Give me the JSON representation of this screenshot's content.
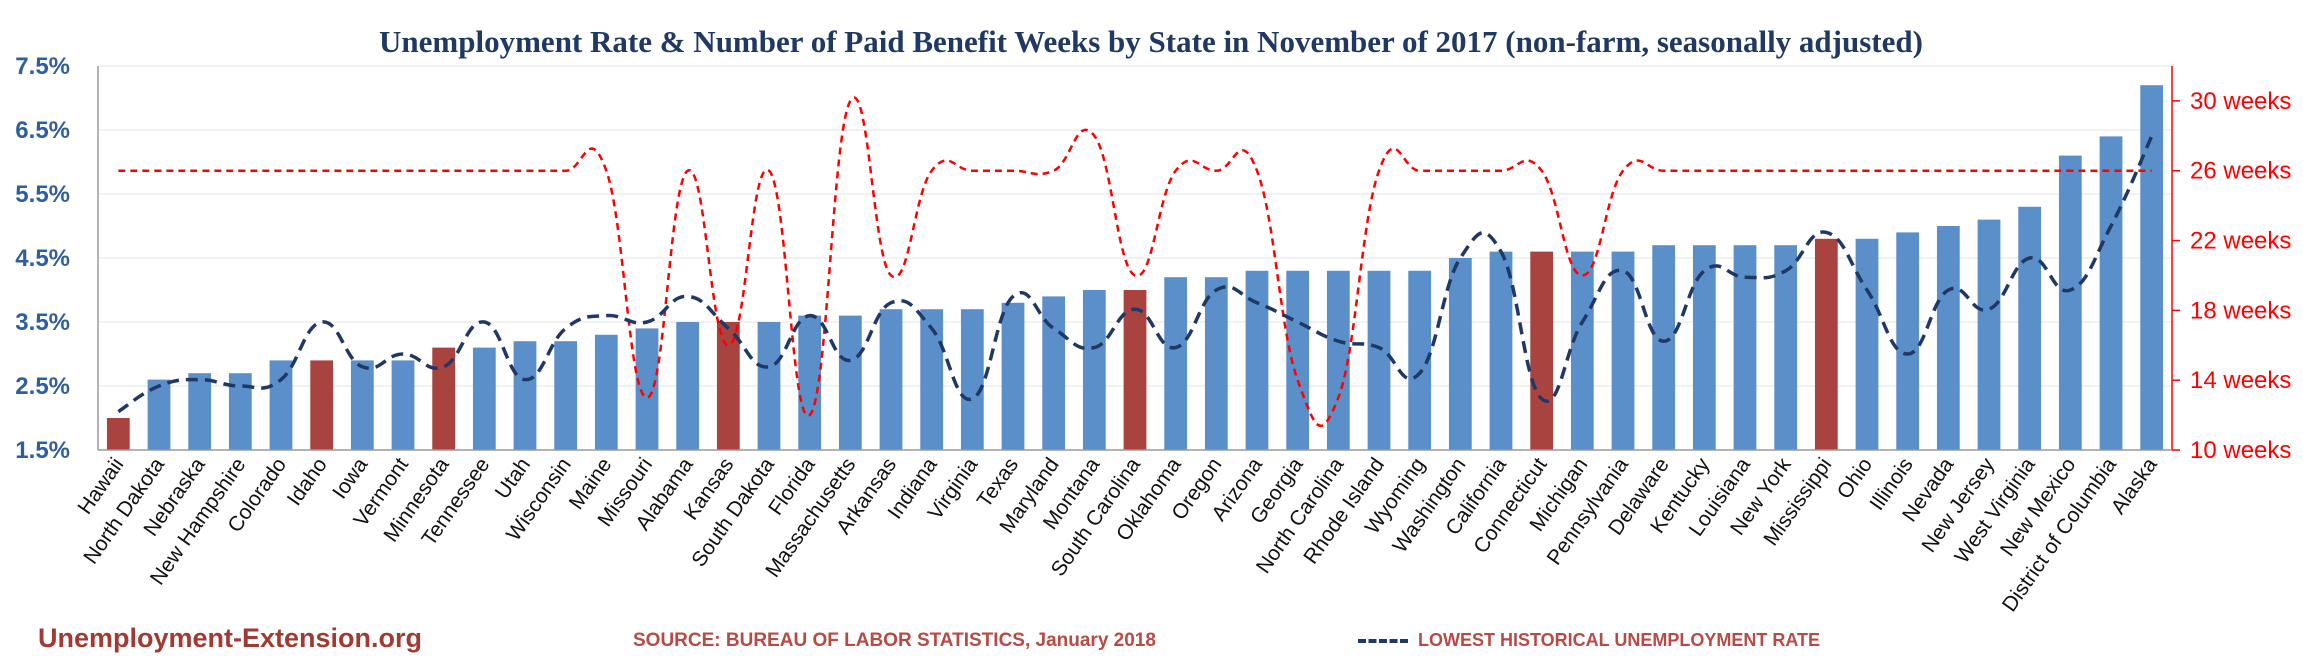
{
  "chart_data": {
    "type": "bar",
    "title": "Unemployment Rate & Number of Paid Benefit Weeks by State in November of 2017 (non-farm, seasonally adjusted)",
    "categories": [
      "Hawaii",
      "North Dakota",
      "Nebraska",
      "New Hampshire",
      "Colorado",
      "Idaho",
      "Iowa",
      "Vermont",
      "Minnesota",
      "Tennessee",
      "Utah",
      "Wisconsin",
      "Maine",
      "Missouri",
      "Alabama",
      "Kansas",
      "South Dakota",
      "Florida",
      "Massachusetts",
      "Arkansas",
      "Indiana",
      "Virginia",
      "Texas",
      "Maryland",
      "Montana",
      "South Carolina",
      "Oklahoma",
      "Oregon",
      "Arizona",
      "Georgia",
      "North Carolina",
      "Rhode Island",
      "Wyoming",
      "Washington",
      "California",
      "Connecticut",
      "Michigan",
      "Pennsylvania",
      "Delaware",
      "Kentucky",
      "Louisiana",
      "New York",
      "Mississippi",
      "Ohio",
      "Illinois",
      "Nevada",
      "New Jersey",
      "West Virginia",
      "New Mexico",
      "District of Columbia",
      "Alaska"
    ],
    "series": [
      {
        "name": "",
        "axis": "left",
        "values": [
          2.0,
          2.6,
          2.7,
          2.7,
          2.9,
          2.9,
          2.9,
          2.9,
          3.1,
          3.1,
          3.2,
          3.2,
          3.3,
          3.4,
          3.5,
          3.5,
          3.5,
          3.6,
          3.6,
          3.7,
          3.7,
          3.7,
          3.8,
          3.9,
          4.0,
          4.0,
          4.2,
          4.2,
          4.3,
          4.3,
          4.3,
          4.3,
          4.3,
          4.5,
          4.6,
          4.6,
          4.6,
          4.6,
          4.7,
          4.7,
          4.7,
          4.7,
          4.8,
          4.8,
          4.9,
          5.0,
          5.1,
          5.3,
          6.1,
          6.4,
          7.2
        ],
        "highlighted": [
          "Hawaii",
          "Idaho",
          "Minnesota",
          "Kansas",
          "South Carolina",
          "Connecticut",
          "Mississippi"
        ],
        "color": "#5b8fc9",
        "highlight_color": "#a9433f"
      },
      {
        "name": "LOWEST HISTORICAL UNEMPLOYMENT RATE",
        "axis": "left",
        "values": [
          2.1,
          2.5,
          2.6,
          2.5,
          2.6,
          3.5,
          2.8,
          3.0,
          2.8,
          3.5,
          2.6,
          3.4,
          3.6,
          3.5,
          3.9,
          3.4,
          2.8,
          3.6,
          2.9,
          3.8,
          3.4,
          2.3,
          3.9,
          3.4,
          3.1,
          3.7,
          3.1,
          4.0,
          3.8,
          3.5,
          3.2,
          3.1,
          2.7,
          4.5,
          4.6,
          2.3,
          3.5,
          4.3,
          3.2,
          4.3,
          4.2,
          4.3,
          4.9,
          4.0,
          3.0,
          4.0,
          3.7,
          4.5,
          4.0,
          5.0,
          6.4
        ],
        "color": "#1f3864",
        "style": "dashed"
      },
      {
        "name": "",
        "axis": "right",
        "values": [
          26,
          26,
          26,
          26,
          26,
          26,
          26,
          26,
          26,
          26,
          26,
          26,
          26,
          13,
          26,
          16,
          26,
          12,
          30,
          20,
          26,
          26,
          26,
          26,
          28,
          20,
          26,
          26,
          26,
          14,
          13,
          26,
          26,
          26,
          26,
          26,
          20,
          26,
          26,
          26,
          26,
          26,
          26,
          26,
          26,
          26,
          26,
          26,
          26,
          26,
          26
        ],
        "color": "#ff0000",
        "style": "dashed"
      }
    ],
    "y_left": {
      "ticks": [
        "1.5%",
        "2.5%",
        "3.5%",
        "4.5%",
        "5.5%",
        "6.5%",
        "7.5%"
      ],
      "ylim": [
        1.5,
        7.5
      ]
    },
    "y_right": {
      "ticks": [
        "10 weeks",
        "14 weeks",
        "18 weeks",
        "22 weeks",
        "26 weeks",
        "30 weeks"
      ],
      "ylim": [
        10,
        32
      ]
    },
    "grid": true,
    "legend_position": "bottom"
  },
  "footer": {
    "brand": "Unemployment-Extension.org",
    "source": "SOURCE: BUREAU OF LABOR STATISTICS, January 2018",
    "legend_label": "LOWEST HISTORICAL UNEMPLOYMENT RATE"
  }
}
